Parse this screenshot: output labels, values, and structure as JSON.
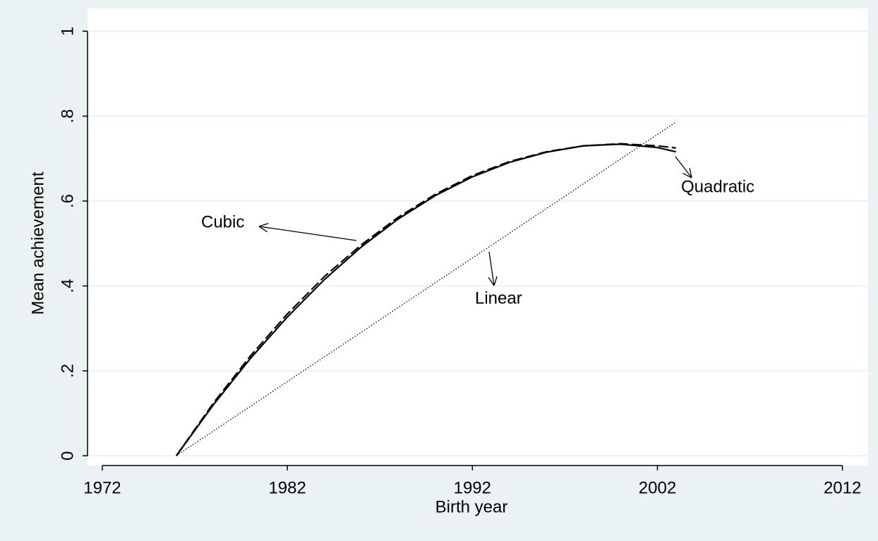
{
  "chart_data": {
    "type": "line",
    "x_label": "Birth year",
    "y_label": "Mean achievement",
    "xlim": [
      1971.2,
      2012.7
    ],
    "ylim": [
      -0.023,
      1.027
    ],
    "xticks": [
      1972,
      1982,
      1992,
      2002,
      2012
    ],
    "yticks": [
      0,
      {
        "value": 0.2,
        "label": ".2"
      },
      {
        "value": 0.4,
        "label": ".4"
      },
      {
        "value": 0.6,
        "label": ".6"
      },
      {
        "value": 0.8,
        "label": ".8"
      },
      1
    ],
    "grid": true,
    "series": [
      {
        "name": "Quadratic",
        "color": "#000000",
        "style": "dashed",
        "x": [
          1976,
          1978,
          1980,
          1982,
          1984,
          1986,
          1988,
          1990,
          1992,
          1994,
          1996,
          1998,
          2000,
          2002,
          2003
        ],
        "values": [
          0,
          0.124,
          0.235,
          0.334,
          0.422,
          0.497,
          0.562,
          0.616,
          0.66,
          0.693,
          0.716,
          0.73,
          0.735,
          0.73,
          0.725
        ]
      },
      {
        "name": "Cubic",
        "color": "#000000",
        "style": "solid",
        "x": [
          1976,
          1978,
          1980,
          1982,
          1984,
          1986,
          1988,
          1990,
          1992,
          1994,
          1996,
          1998,
          2000,
          2002,
          2003
        ],
        "values": [
          0,
          0.12,
          0.229,
          0.327,
          0.415,
          0.492,
          0.558,
          0.613,
          0.657,
          0.691,
          0.715,
          0.73,
          0.734,
          0.726,
          0.716
        ]
      },
      {
        "name": "Linear",
        "color": "#000000",
        "style": "dotted",
        "x": [
          1976,
          2003
        ],
        "values": [
          0,
          0.786
        ]
      }
    ]
  }
}
